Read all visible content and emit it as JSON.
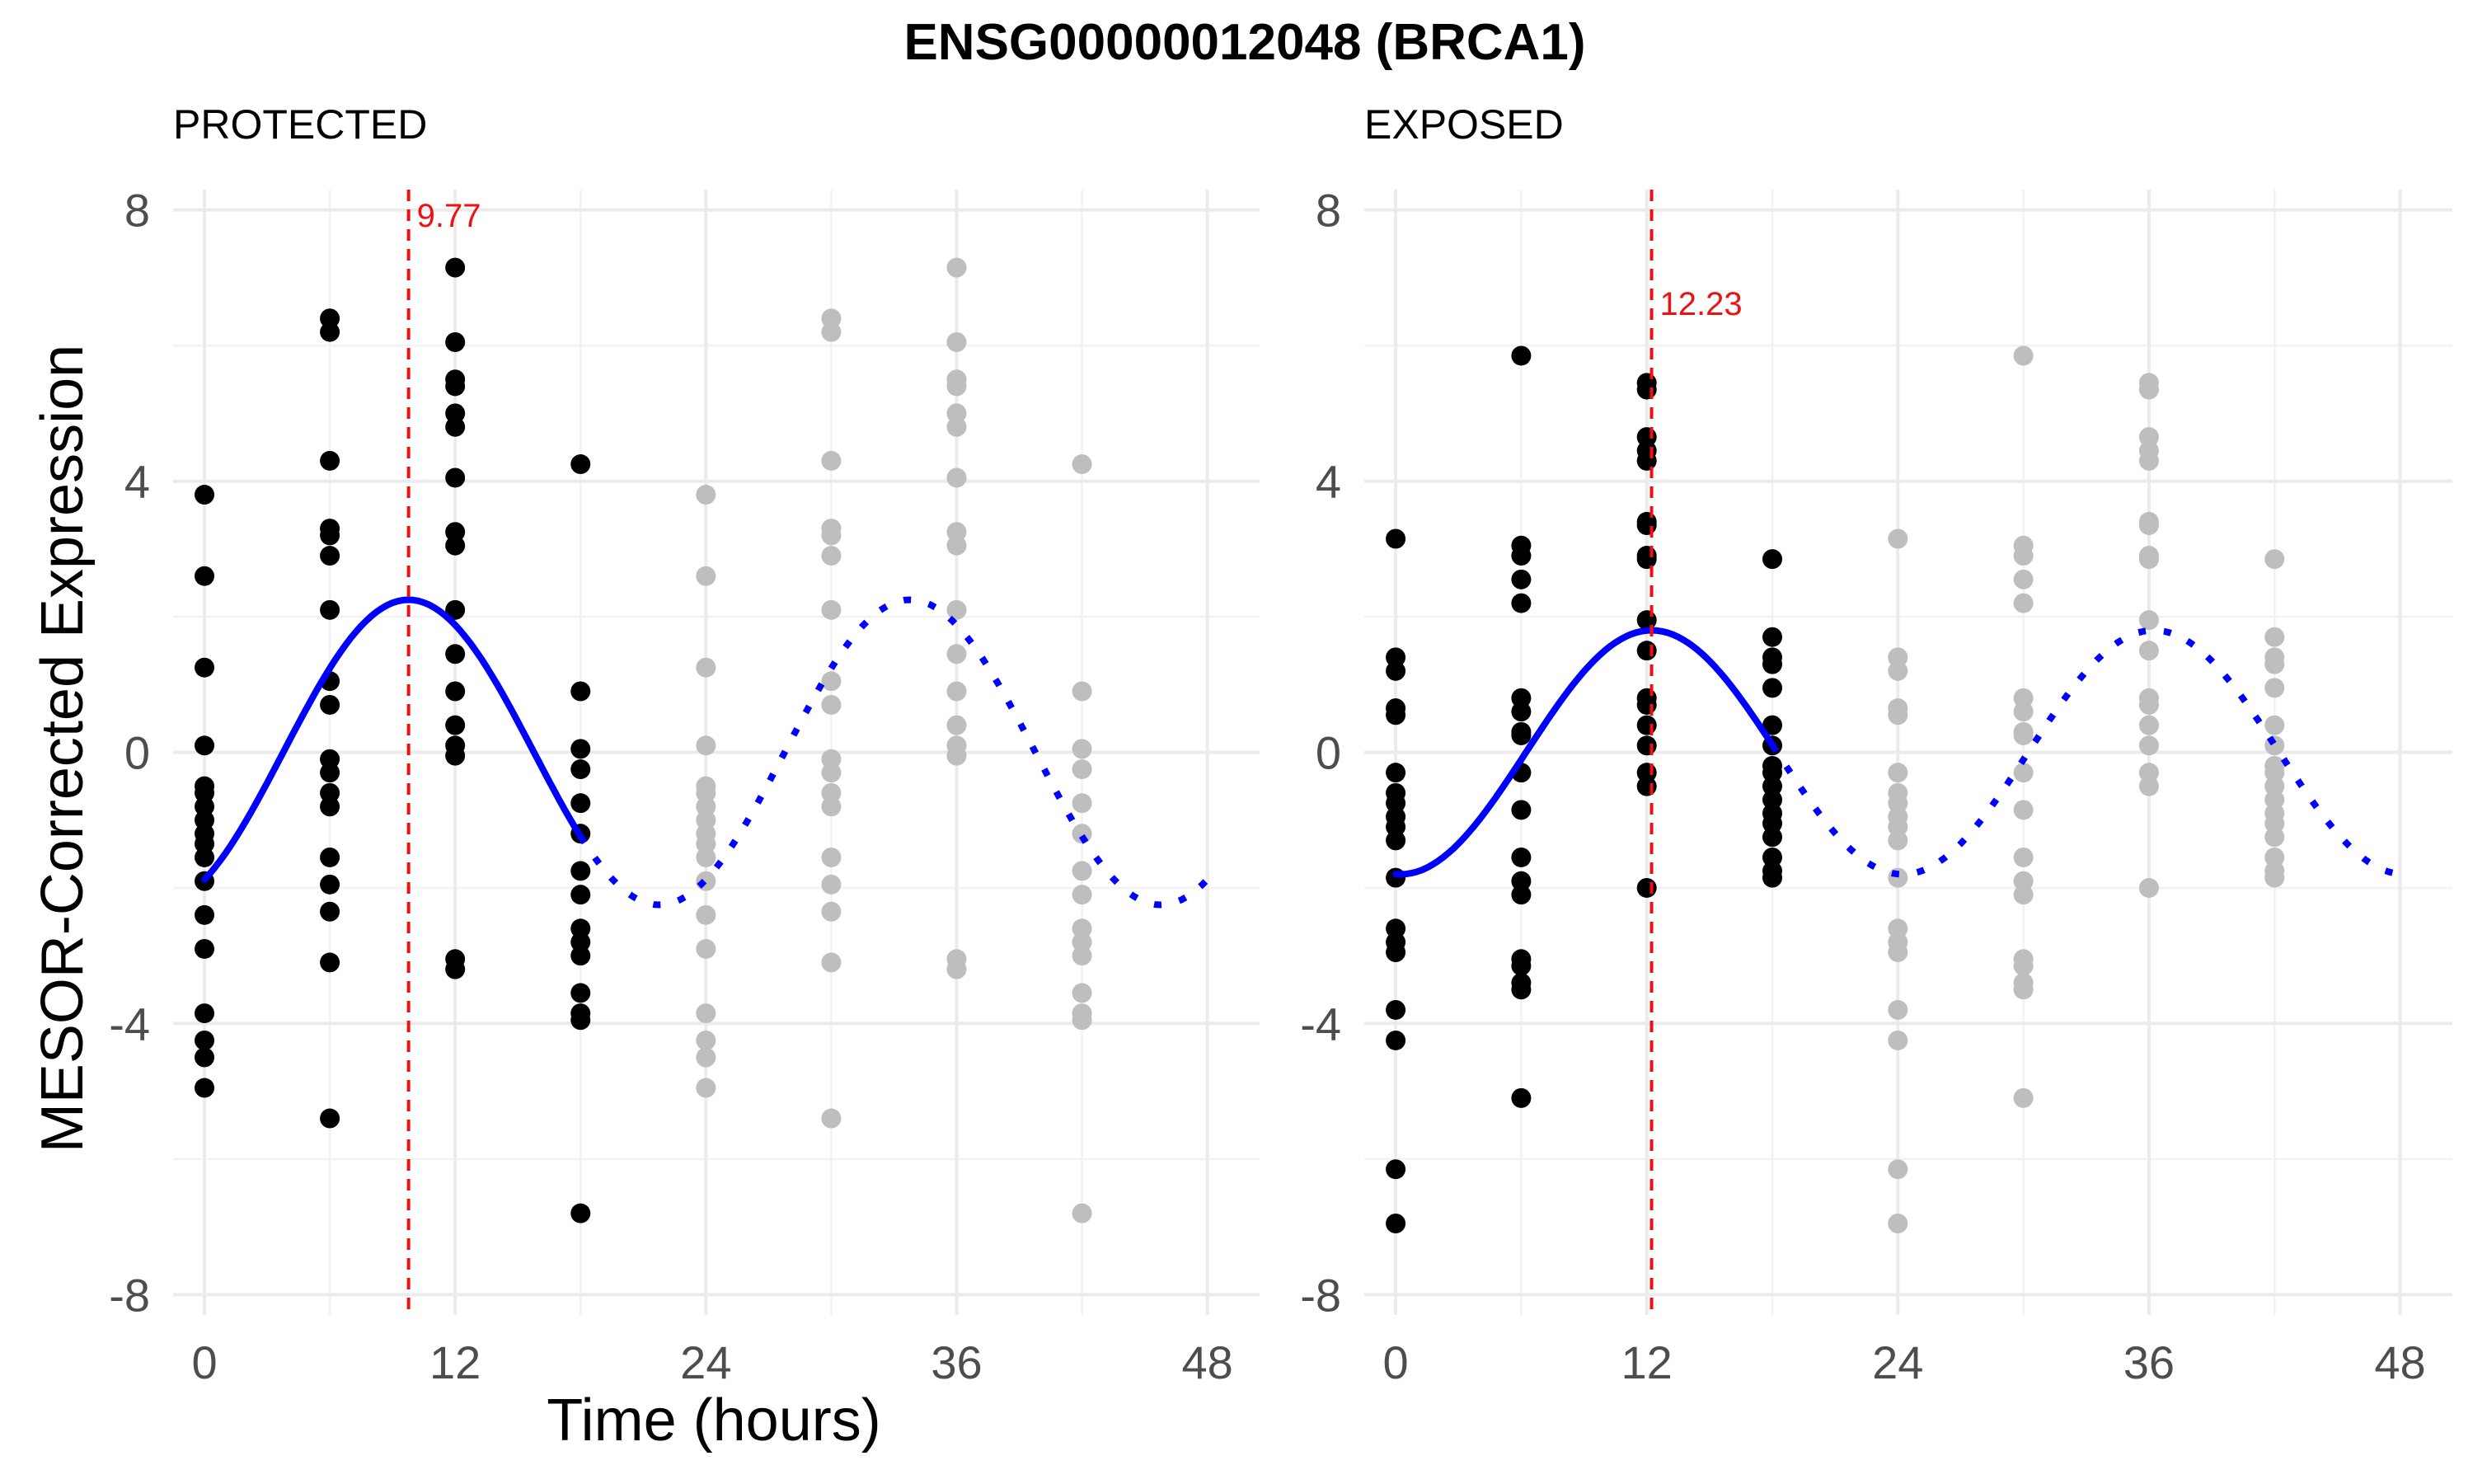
{
  "chart_data": {
    "type": "scatter",
    "title": "ENSG00000012048 (BRCA1)",
    "xlabel": "Time (hours)",
    "ylabel": "MESOR-Corrected Expression",
    "xlim": [
      -1.5,
      50.5
    ],
    "ylim": [
      -8.3,
      8.3
    ],
    "x_ticks": [
      0,
      12,
      24,
      36,
      48
    ],
    "y_ticks": [
      -8,
      -4,
      0,
      4,
      8
    ],
    "grid": true,
    "colors": {
      "observed": "#000000",
      "repeated": "#bebebe",
      "fit": "#0000ff",
      "acrophase": "#ee1111"
    },
    "panels": [
      {
        "name": "PROTECTED",
        "acrophase": 9.77,
        "acrophase_label": "9.77",
        "amplitude": 2.25,
        "points": [
          {
            "t": 0,
            "values": [
              3.8,
              2.6,
              1.25,
              0.1,
              -0.5,
              -0.6,
              -0.8,
              -1.0,
              -1.2,
              -1.35,
              -1.55,
              -1.9,
              -2.4,
              -2.9,
              -3.85,
              -4.25,
              -4.5,
              -4.95
            ]
          },
          {
            "t": 6,
            "values": [
              6.4,
              6.2,
              4.3,
              3.3,
              3.2,
              2.9,
              2.1,
              1.05,
              0.7,
              -0.1,
              -0.3,
              -0.6,
              -0.8,
              -1.55,
              -1.95,
              -2.35,
              -3.1,
              -5.4
            ]
          },
          {
            "t": 12,
            "values": [
              7.15,
              6.05,
              5.5,
              5.4,
              5.0,
              4.8,
              4.05,
              3.25,
              3.05,
              2.1,
              1.45,
              0.9,
              0.4,
              0.1,
              -0.05,
              -3.05,
              -3.2
            ]
          },
          {
            "t": 18,
            "values": [
              4.25,
              0.9,
              0.05,
              -0.25,
              -0.75,
              -1.2,
              -1.75,
              -2.1,
              -2.6,
              -2.8,
              -3.0,
              -3.55,
              -3.85,
              -3.95,
              -6.8
            ]
          }
        ]
      },
      {
        "name": "EXPOSED",
        "acrophase": 12.23,
        "acrophase_label": "12.23",
        "amplitude": 1.8,
        "points": [
          {
            "t": 0,
            "values": [
              3.15,
              1.4,
              1.2,
              0.65,
              0.55,
              -0.3,
              -0.6,
              -0.75,
              -0.95,
              -1.1,
              -1.3,
              -1.85,
              -2.6,
              -2.8,
              -2.95,
              -3.8,
              -4.25,
              -6.15,
              -6.95
            ]
          },
          {
            "t": 6,
            "values": [
              5.85,
              3.05,
              2.9,
              2.55,
              2.2,
              0.8,
              0.6,
              0.3,
              0.25,
              -0.3,
              -0.85,
              -1.55,
              -1.9,
              -2.1,
              -3.05,
              -3.15,
              -3.4,
              -3.5,
              -5.1
            ]
          },
          {
            "t": 12,
            "values": [
              5.45,
              5.35,
              4.65,
              4.45,
              4.3,
              3.4,
              3.35,
              2.9,
              2.85,
              1.95,
              1.5,
              0.8,
              0.7,
              0.4,
              0.1,
              -0.3,
              -0.5,
              -2.0
            ]
          },
          {
            "t": 18,
            "values": [
              2.85,
              1.7,
              1.4,
              1.3,
              0.95,
              0.4,
              0.1,
              -0.2,
              -0.3,
              -0.5,
              -0.7,
              -0.9,
              -1.05,
              -1.25,
              -1.55,
              -1.75,
              -1.85
            ]
          }
        ]
      }
    ]
  }
}
